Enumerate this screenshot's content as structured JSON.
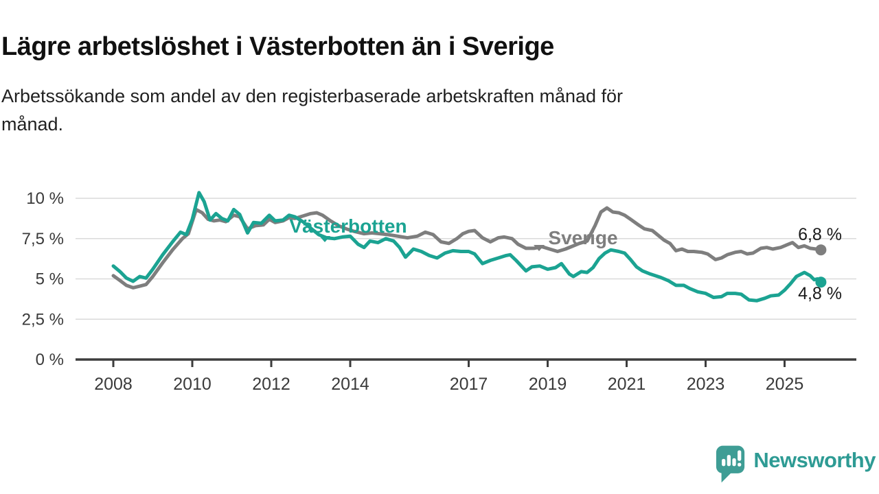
{
  "header": {
    "title": "Lägre arbetslöshet i Västerbotten än i Sverige",
    "subtitle_lines": [
      "Arbetssökande som andel av den registerbaserade arbetskraften månad för",
      "månad."
    ]
  },
  "chart_data": {
    "type": "line",
    "x_unit": "year (monthly share of labour force)",
    "xlim": [
      2007.05,
      2026.8
    ],
    "ylim": [
      0,
      10.5
    ],
    "grid": "horizontal",
    "x_ticks": [
      2008,
      2010,
      2012,
      2014,
      2017,
      2019,
      2021,
      2023,
      2025
    ],
    "y_ticks": [
      {
        "value": 0,
        "label": "0 %"
      },
      {
        "value": 2.5,
        "label": "2,5 %"
      },
      {
        "value": 5,
        "label": "5 %"
      },
      {
        "value": 7.5,
        "label": "7,5 %"
      },
      {
        "value": 10,
        "label": "10 %"
      }
    ],
    "colors": {
      "vasterbotten": "#1BA392",
      "sverige": "#7E7E7E",
      "axis": "#3D3D3D",
      "gridline": "#DADADA",
      "tick_text": "#3A3A3A",
      "value_text": "#1A1A1A"
    },
    "series": [
      {
        "name": "Sverige",
        "color": "#7E7E7E",
        "end_label": "6,8 %",
        "end_value": 6.8,
        "points": [
          [
            2008.0,
            5.2
          ],
          [
            2008.17,
            4.9
          ],
          [
            2008.33,
            4.6
          ],
          [
            2008.5,
            4.45
          ],
          [
            2008.67,
            4.55
          ],
          [
            2008.83,
            4.65
          ],
          [
            2009.0,
            5.15
          ],
          [
            2009.25,
            6.0
          ],
          [
            2009.5,
            6.8
          ],
          [
            2009.75,
            7.5
          ],
          [
            2009.9,
            7.8
          ],
          [
            2010.1,
            9.3
          ],
          [
            2010.25,
            9.1
          ],
          [
            2010.4,
            8.7
          ],
          [
            2010.55,
            8.6
          ],
          [
            2010.7,
            8.65
          ],
          [
            2010.85,
            8.55
          ],
          [
            2011.05,
            8.95
          ],
          [
            2011.2,
            8.85
          ],
          [
            2011.4,
            8.1
          ],
          [
            2011.6,
            8.3
          ],
          [
            2011.8,
            8.35
          ],
          [
            2011.95,
            8.7
          ],
          [
            2012.1,
            8.5
          ],
          [
            2012.3,
            8.6
          ],
          [
            2012.45,
            8.8
          ],
          [
            2012.6,
            8.75
          ],
          [
            2012.8,
            8.9
          ],
          [
            2013.0,
            9.05
          ],
          [
            2013.15,
            9.1
          ],
          [
            2013.3,
            8.95
          ],
          [
            2013.5,
            8.6
          ],
          [
            2013.7,
            8.3
          ],
          [
            2013.9,
            8.1
          ],
          [
            2014.1,
            7.95
          ],
          [
            2014.35,
            7.8
          ],
          [
            2014.55,
            7.85
          ],
          [
            2014.75,
            7.8
          ],
          [
            2014.95,
            7.75
          ],
          [
            2015.2,
            7.65
          ],
          [
            2015.45,
            7.55
          ],
          [
            2015.7,
            7.65
          ],
          [
            2015.9,
            7.9
          ],
          [
            2016.1,
            7.75
          ],
          [
            2016.3,
            7.3
          ],
          [
            2016.5,
            7.2
          ],
          [
            2016.7,
            7.5
          ],
          [
            2016.85,
            7.8
          ],
          [
            2017.0,
            7.95
          ],
          [
            2017.15,
            8.0
          ],
          [
            2017.35,
            7.55
          ],
          [
            2017.55,
            7.3
          ],
          [
            2017.75,
            7.55
          ],
          [
            2017.9,
            7.6
          ],
          [
            2018.1,
            7.5
          ],
          [
            2018.25,
            7.15
          ],
          [
            2018.45,
            6.9
          ],
          [
            2018.65,
            6.9
          ],
          [
            2018.85,
            7.0
          ],
          [
            2019.05,
            6.85
          ],
          [
            2019.25,
            6.7
          ],
          [
            2019.45,
            6.85
          ],
          [
            2019.6,
            7.0
          ],
          [
            2019.8,
            7.2
          ],
          [
            2020.0,
            7.35
          ],
          [
            2020.2,
            8.3
          ],
          [
            2020.35,
            9.15
          ],
          [
            2020.5,
            9.4
          ],
          [
            2020.65,
            9.15
          ],
          [
            2020.8,
            9.1
          ],
          [
            2020.95,
            8.95
          ],
          [
            2021.1,
            8.7
          ],
          [
            2021.3,
            8.35
          ],
          [
            2021.45,
            8.1
          ],
          [
            2021.65,
            8.0
          ],
          [
            2021.8,
            7.7
          ],
          [
            2021.95,
            7.4
          ],
          [
            2022.1,
            7.2
          ],
          [
            2022.25,
            6.75
          ],
          [
            2022.4,
            6.85
          ],
          [
            2022.55,
            6.7
          ],
          [
            2022.7,
            6.7
          ],
          [
            2022.9,
            6.65
          ],
          [
            2023.05,
            6.55
          ],
          [
            2023.25,
            6.2
          ],
          [
            2023.4,
            6.3
          ],
          [
            2023.55,
            6.5
          ],
          [
            2023.75,
            6.65
          ],
          [
            2023.9,
            6.7
          ],
          [
            2024.05,
            6.55
          ],
          [
            2024.2,
            6.6
          ],
          [
            2024.4,
            6.9
          ],
          [
            2024.55,
            6.95
          ],
          [
            2024.7,
            6.85
          ],
          [
            2024.9,
            6.95
          ],
          [
            2025.05,
            7.1
          ],
          [
            2025.2,
            7.25
          ],
          [
            2025.35,
            6.95
          ],
          [
            2025.5,
            7.05
          ],
          [
            2025.65,
            6.9
          ],
          [
            2025.8,
            6.85
          ],
          [
            2025.92,
            6.8
          ]
        ]
      },
      {
        "name": "Västerbotten",
        "color": "#1BA392",
        "end_label": "4,8 %",
        "end_value": 4.8,
        "points": [
          [
            2008.0,
            5.8
          ],
          [
            2008.17,
            5.45
          ],
          [
            2008.33,
            5.05
          ],
          [
            2008.5,
            4.85
          ],
          [
            2008.67,
            5.15
          ],
          [
            2008.83,
            5.05
          ],
          [
            2009.0,
            5.6
          ],
          [
            2009.25,
            6.5
          ],
          [
            2009.5,
            7.3
          ],
          [
            2009.7,
            7.9
          ],
          [
            2009.85,
            7.75
          ],
          [
            2010.0,
            8.7
          ],
          [
            2010.17,
            10.35
          ],
          [
            2010.3,
            9.8
          ],
          [
            2010.45,
            8.65
          ],
          [
            2010.6,
            9.05
          ],
          [
            2010.75,
            8.75
          ],
          [
            2010.9,
            8.6
          ],
          [
            2011.05,
            9.3
          ],
          [
            2011.2,
            9.0
          ],
          [
            2011.4,
            7.85
          ],
          [
            2011.55,
            8.5
          ],
          [
            2011.75,
            8.45
          ],
          [
            2011.95,
            8.95
          ],
          [
            2012.1,
            8.6
          ],
          [
            2012.3,
            8.65
          ],
          [
            2012.45,
            8.95
          ],
          [
            2012.6,
            8.85
          ],
          [
            2012.8,
            8.55
          ],
          [
            2013.0,
            8.15
          ],
          [
            2013.2,
            7.75
          ],
          [
            2013.4,
            7.55
          ],
          [
            2013.6,
            7.5
          ],
          [
            2013.8,
            7.6
          ],
          [
            2014.0,
            7.65
          ],
          [
            2014.2,
            7.15
          ],
          [
            2014.35,
            6.95
          ],
          [
            2014.5,
            7.35
          ],
          [
            2014.7,
            7.25
          ],
          [
            2014.9,
            7.5
          ],
          [
            2015.1,
            7.35
          ],
          [
            2015.25,
            6.95
          ],
          [
            2015.4,
            6.35
          ],
          [
            2015.6,
            6.85
          ],
          [
            2015.8,
            6.7
          ],
          [
            2016.0,
            6.45
          ],
          [
            2016.2,
            6.3
          ],
          [
            2016.4,
            6.6
          ],
          [
            2016.6,
            6.75
          ],
          [
            2016.8,
            6.7
          ],
          [
            2017.0,
            6.7
          ],
          [
            2017.15,
            6.55
          ],
          [
            2017.35,
            5.95
          ],
          [
            2017.55,
            6.15
          ],
          [
            2017.75,
            6.3
          ],
          [
            2017.95,
            6.45
          ],
          [
            2018.05,
            6.5
          ],
          [
            2018.2,
            6.15
          ],
          [
            2018.45,
            5.5
          ],
          [
            2018.6,
            5.75
          ],
          [
            2018.8,
            5.8
          ],
          [
            2019.0,
            5.6
          ],
          [
            2019.2,
            5.7
          ],
          [
            2019.35,
            5.95
          ],
          [
            2019.55,
            5.3
          ],
          [
            2019.65,
            5.15
          ],
          [
            2019.85,
            5.45
          ],
          [
            2020.0,
            5.4
          ],
          [
            2020.15,
            5.7
          ],
          [
            2020.3,
            6.25
          ],
          [
            2020.45,
            6.6
          ],
          [
            2020.6,
            6.8
          ],
          [
            2020.8,
            6.7
          ],
          [
            2020.95,
            6.6
          ],
          [
            2021.1,
            6.2
          ],
          [
            2021.25,
            5.75
          ],
          [
            2021.4,
            5.5
          ],
          [
            2021.6,
            5.3
          ],
          [
            2021.85,
            5.1
          ],
          [
            2022.05,
            4.9
          ],
          [
            2022.25,
            4.6
          ],
          [
            2022.45,
            4.6
          ],
          [
            2022.6,
            4.4
          ],
          [
            2022.8,
            4.2
          ],
          [
            2023.0,
            4.1
          ],
          [
            2023.2,
            3.85
          ],
          [
            2023.4,
            3.9
          ],
          [
            2023.55,
            4.1
          ],
          [
            2023.75,
            4.1
          ],
          [
            2023.9,
            4.05
          ],
          [
            2024.1,
            3.7
          ],
          [
            2024.3,
            3.65
          ],
          [
            2024.5,
            3.8
          ],
          [
            2024.65,
            3.95
          ],
          [
            2024.85,
            4.0
          ],
          [
            2025.0,
            4.3
          ],
          [
            2025.15,
            4.7
          ],
          [
            2025.3,
            5.15
          ],
          [
            2025.5,
            5.4
          ],
          [
            2025.65,
            5.2
          ],
          [
            2025.75,
            4.95
          ],
          [
            2025.83,
            5.0
          ],
          [
            2025.92,
            4.8
          ]
        ]
      }
    ]
  },
  "footer": {
    "brand": "Newsworthy"
  }
}
